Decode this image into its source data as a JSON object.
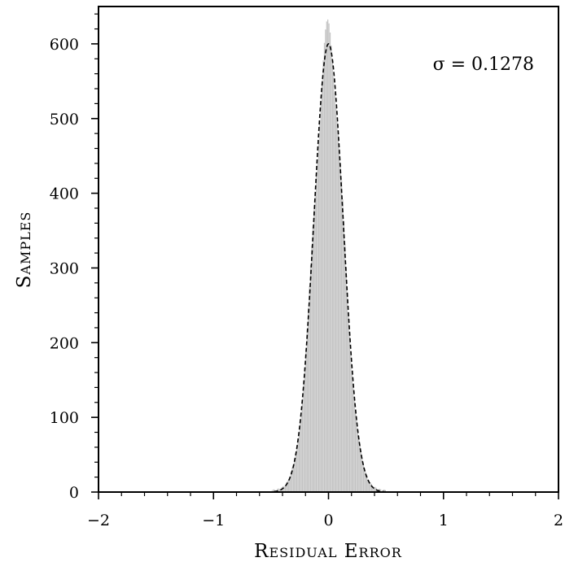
{
  "chart_data": {
    "type": "bar",
    "xlabel": "Residual Error",
    "ylabel": "Samples",
    "xlim": [
      -2,
      2
    ],
    "ylim": [
      0,
      650
    ],
    "x_ticks": [
      -2,
      -1,
      0,
      1,
      2
    ],
    "x_tick_labels": [
      "−2",
      "−1",
      "0",
      "1",
      "2"
    ],
    "y_ticks": [
      0,
      100,
      200,
      300,
      400,
      500,
      600
    ],
    "y_tick_labels": [
      "0",
      "100",
      "200",
      "300",
      "400",
      "500",
      "600"
    ],
    "annotation": "σ = 0.1278",
    "grid": false,
    "histogram": {
      "color": "#c3c3c3",
      "bin_width": 0.01,
      "mean": 0.0,
      "sigma": 0.1278,
      "peak_count": 610
    },
    "fit_curve": {
      "type": "gaussian",
      "mean": 0.0,
      "sigma": 0.1278,
      "amplitude": 600,
      "style": "dashed",
      "color": "#000000"
    }
  }
}
